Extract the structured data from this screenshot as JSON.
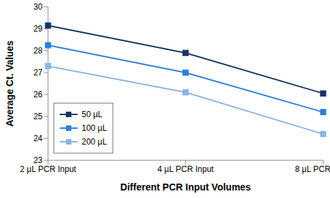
{
  "chart_data": {
    "type": "line",
    "x_label": "Different PCR Input Volumes",
    "y_label": "Average Ct. Values",
    "categories": [
      "2 µL PCR Input",
      "4 µL PCR Input",
      "8 µL PCR Input"
    ],
    "series": [
      {
        "name": "50 µL",
        "color": "#17375e",
        "marker": "square",
        "values": [
          29.15,
          27.9,
          26.05
        ]
      },
      {
        "name": "100 µL",
        "color": "#2e7fd8",
        "marker": "square",
        "values": [
          28.25,
          27.0,
          25.2
        ]
      },
      {
        "name": "200 µL",
        "color": "#8db4e2",
        "marker": "square",
        "values": [
          27.3,
          26.1,
          24.2
        ]
      }
    ],
    "ylim": [
      23,
      30
    ],
    "yticks": [
      23,
      24,
      25,
      26,
      27,
      28,
      29,
      30
    ],
    "legend": "lower left",
    "grid": false
  }
}
